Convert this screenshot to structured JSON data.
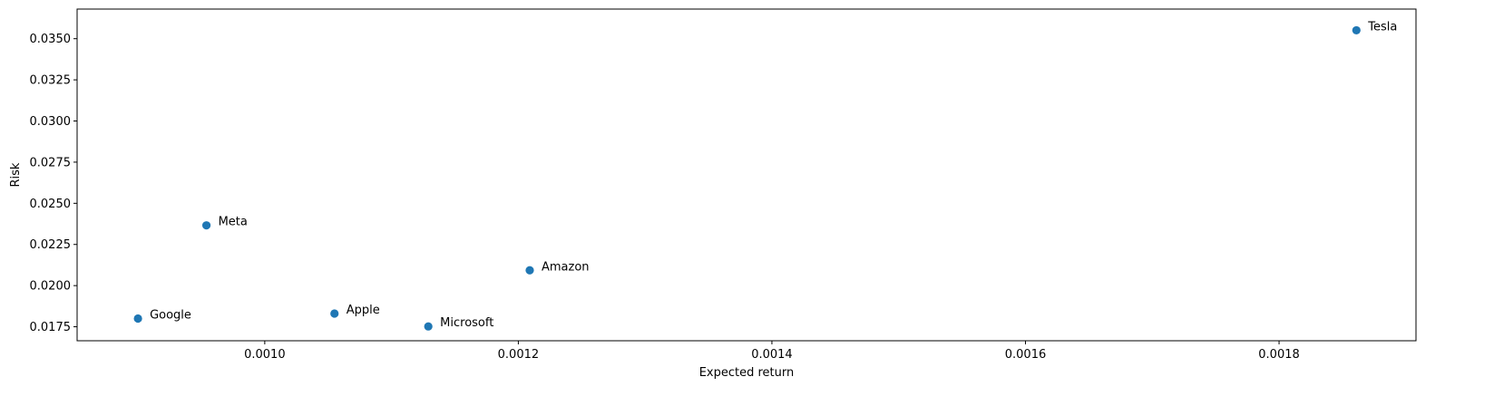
{
  "chart_data": {
    "type": "scatter",
    "title": "",
    "xlabel": "Expected return",
    "ylabel": "Risk",
    "xlim": [
      0.000852,
      0.001908
    ],
    "ylim": [
      0.01665,
      0.0368
    ],
    "grid": false,
    "legend": "none",
    "x_ticks": [
      "0.0010",
      "0.0012",
      "0.0014",
      "0.0016",
      "0.0018"
    ],
    "x_tick_values": [
      0.001,
      0.0012,
      0.0014,
      0.0016,
      0.0018
    ],
    "y_ticks": [
      "0.0175",
      "0.0200",
      "0.0225",
      "0.0250",
      "0.0275",
      "0.0300",
      "0.0325",
      "0.0350"
    ],
    "y_tick_values": [
      0.0175,
      0.02,
      0.0225,
      0.025,
      0.0275,
      0.03,
      0.0325,
      0.035
    ],
    "marker_color": "#1f77b4",
    "points": [
      {
        "label": "Google",
        "x": 0.0009,
        "y": 0.018
      },
      {
        "label": "Meta",
        "x": 0.000954,
        "y": 0.02366
      },
      {
        "label": "Apple",
        "x": 0.001055,
        "y": 0.0183
      },
      {
        "label": "Microsoft",
        "x": 0.001129,
        "y": 0.01752
      },
      {
        "label": "Amazon",
        "x": 0.001209,
        "y": 0.02093
      },
      {
        "label": "Tesla",
        "x": 0.001861,
        "y": 0.03551
      }
    ]
  }
}
